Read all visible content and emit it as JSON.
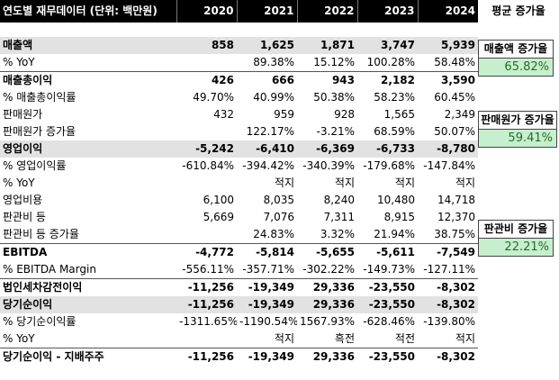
{
  "header": {
    "title": "연도별 재무데이터 (단위: 백만원)",
    "years": [
      "2020",
      "2021",
      "2022",
      "2023",
      "2024"
    ],
    "avg_growth_label": "평균 증가율"
  },
  "rows": {
    "sales": {
      "label": "매출액",
      "values": [
        "858",
        "1,625",
        "1,871",
        "3,747",
        "5,939"
      ]
    },
    "sales_yoy": {
      "label": "% YoY",
      "values": [
        "",
        "89.38%",
        "15.12%",
        "100.28%",
        "58.48%"
      ]
    },
    "gross_profit": {
      "label": "매출총이익",
      "values": [
        "426",
        "666",
        "943",
        "2,182",
        "3,590"
      ]
    },
    "gross_margin": {
      "label": "% 매출총이익률",
      "values": [
        "49.70%",
        "40.99%",
        "50.38%",
        "58.23%",
        "60.45%"
      ]
    },
    "cogs": {
      "label": "판매원가",
      "values": [
        "432",
        "959",
        "928",
        "1,565",
        "2,349"
      ]
    },
    "cogs_growth": {
      "label": "판매원가 증가율",
      "values": [
        "",
        "122.17%",
        "-3.21%",
        "68.59%",
        "50.07%"
      ]
    },
    "op_income": {
      "label": "영업이익",
      "values": [
        "-5,242",
        "-6,410",
        "-6,369",
        "-6,733",
        "-8,780"
      ]
    },
    "op_margin": {
      "label": "% 영업이익률",
      "values": [
        "-610.84%",
        "-394.42%",
        "-340.39%",
        "-179.68%",
        "-147.84%"
      ]
    },
    "op_yoy": {
      "label": "% YoY",
      "values": [
        "",
        "적지",
        "적지",
        "적지",
        "적지"
      ]
    },
    "op_expense": {
      "label": "영업비용",
      "values": [
        "6,100",
        "8,035",
        "8,240",
        "10,480",
        "14,718"
      ]
    },
    "sga": {
      "label": "판관비 등",
      "values": [
        "5,669",
        "7,076",
        "7,311",
        "8,915",
        "12,370"
      ]
    },
    "sga_growth": {
      "label": "판관비 등 증가율",
      "values": [
        "",
        "24.83%",
        "3.32%",
        "21.94%",
        "38.75%"
      ]
    },
    "ebitda": {
      "label": "EBITDA",
      "values": [
        "-4,772",
        "-5,814",
        "-5,655",
        "-5,611",
        "-7,549"
      ]
    },
    "ebitda_margin": {
      "label": "% EBITDA Margin",
      "values": [
        "-556.11%",
        "-357.71%",
        "-302.22%",
        "-149.73%",
        "-127.11%"
      ]
    },
    "pretax": {
      "label": "법인세차감전이익",
      "values": [
        "-11,256",
        "-19,349",
        "29,336",
        "-23,550",
        "-8,302"
      ]
    },
    "net_income": {
      "label": "당기순이익",
      "values": [
        "-11,256",
        "-19,349",
        "29,336",
        "-23,550",
        "-8,302"
      ]
    },
    "net_margin": {
      "label": "% 당기순이익률",
      "values": [
        "-1311.65%",
        "-1190.54%",
        "1567.93%",
        "-628.46%",
        "-139.80%"
      ]
    },
    "net_yoy": {
      "label": "% YoY",
      "values": [
        "",
        "적지",
        "흑전",
        "적전",
        "적지"
      ]
    },
    "net_parent": {
      "label": "당기순이익 - 지배주주",
      "values": [
        "-11,256",
        "-19,349",
        "29,336",
        "-23,550",
        "-8,302"
      ]
    }
  },
  "side": {
    "sales_growth": {
      "title": "매출액 증가율",
      "value": "65.82%"
    },
    "cogs_growth": {
      "title": "판매원가 증가율",
      "value": "59.41%"
    },
    "sga_growth": {
      "title": "판관비 증가율",
      "value": "22.21%"
    }
  },
  "colors": {
    "header_bg": "#000000",
    "highlight_row": "#e2e2e2",
    "growth_cell_bg": "#c6efce",
    "growth_cell_text": "#2a6b2a"
  }
}
